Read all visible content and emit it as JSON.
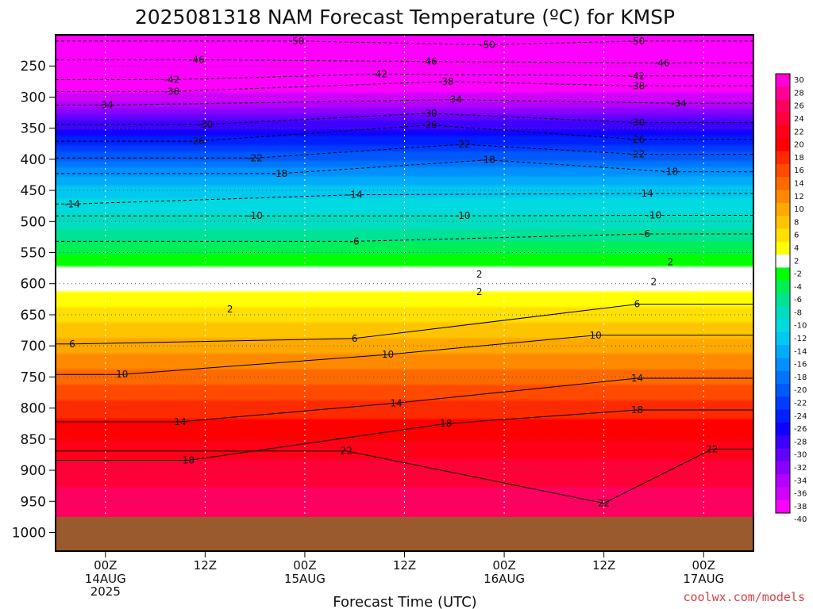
{
  "title": "2025081318 NAM Forecast Temperature (ºC) for KMSP",
  "credit": "coolwx.com/models",
  "chart_data": {
    "type": "heatmap",
    "title": "2025081318 NAM Forecast Temperature (ºC) for KMSP",
    "xlabel": "Forecast Time (UTC)",
    "ylabel": "",
    "x_ticks": [
      {
        "label": "00Z",
        "sub": [
          "14AUG",
          "2025"
        ],
        "hour": 6
      },
      {
        "label": "12Z",
        "sub": [],
        "hour": 18
      },
      {
        "label": "00Z",
        "sub": [
          "15AUG"
        ],
        "hour": 30
      },
      {
        "label": "12Z",
        "sub": [],
        "hour": 42
      },
      {
        "label": "00Z",
        "sub": [
          "16AUG"
        ],
        "hour": 54
      },
      {
        "label": "12Z",
        "sub": [],
        "hour": 66
      },
      {
        "label": "00Z",
        "sub": [
          "17AUG"
        ],
        "hour": 78
      }
    ],
    "xlim_hours": [
      0,
      84
    ],
    "pressure_levels": [
      250,
      300,
      350,
      400,
      450,
      500,
      550,
      600,
      650,
      700,
      750,
      800,
      850,
      900,
      950,
      1000
    ],
    "ylim_hPa": [
      200,
      1030
    ],
    "ground_level_hPa": 975,
    "ground_color": "#9b5a2d",
    "colorbar_labels": [
      30,
      28,
      26,
      24,
      22,
      20,
      18,
      16,
      14,
      12,
      10,
      8,
      6,
      4,
      2,
      -2,
      -4,
      -6,
      -8,
      -10,
      -12,
      -14,
      -16,
      -18,
      -20,
      -22,
      -24,
      -26,
      -28,
      -30,
      -32,
      -34,
      -36,
      -38,
      -40
    ],
    "colorbar_colors": [
      "#ff00d7",
      "#ff0096",
      "#ff0060",
      "#ff0038",
      "#ff0018",
      "#ff0000",
      "#ff2a00",
      "#ff4a00",
      "#ff6a00",
      "#ff8a00",
      "#ffa800",
      "#ffc400",
      "#ffe000",
      "#ffff00",
      "#ffffff",
      "#00ff00",
      "#00ef55",
      "#00e394",
      "#00ddc0",
      "#00dae0",
      "#00c8f0",
      "#00acfa",
      "#0090ff",
      "#0074ff",
      "#0058ff",
      "#003cff",
      "#0020ff",
      "#1000ff",
      "#3c00ff",
      "#6400ff",
      "#8c00ff",
      "#b400ff",
      "#d200ff",
      "#ff00ff"
    ],
    "temperature_profile": {
      "levels_hPa": [
        200,
        250,
        300,
        350,
        400,
        450,
        500,
        550,
        600,
        650,
        700,
        750,
        800,
        850,
        900,
        950,
        975
      ],
      "temps_C": [
        -53,
        -46,
        -37,
        -28,
        -20,
        -13,
        -9,
        -4,
        1,
        5,
        9,
        13,
        17,
        20,
        23,
        25,
        26
      ]
    },
    "contour_levels_C": [
      -50,
      -46,
      -42,
      -38,
      -34,
      -30,
      -26,
      -22,
      -18,
      -14,
      -10,
      -6,
      2,
      6,
      10,
      14,
      18,
      22
    ],
    "contour_labels": [
      {
        "label": "-50",
        "hour": 29,
        "hPa": 210
      },
      {
        "label": "-50",
        "hour": 52,
        "hPa": 216
      },
      {
        "label": "-50",
        "hour": 70,
        "hPa": 210
      },
      {
        "label": "-46",
        "hour": 17,
        "hPa": 240
      },
      {
        "label": "-46",
        "hour": 45,
        "hPa": 243
      },
      {
        "label": "-46",
        "hour": 73,
        "hPa": 245
      },
      {
        "label": "-42",
        "hour": 14,
        "hPa": 272
      },
      {
        "label": "-42",
        "hour": 39,
        "hPa": 263
      },
      {
        "label": "-42",
        "hour": 70,
        "hPa": 266
      },
      {
        "label": "-38",
        "hour": 14,
        "hPa": 291
      },
      {
        "label": "-38",
        "hour": 47,
        "hPa": 275
      },
      {
        "label": "-38",
        "hour": 70,
        "hPa": 282
      },
      {
        "label": "-34",
        "hour": 6,
        "hPa": 313
      },
      {
        "label": "-34",
        "hour": 48,
        "hPa": 304
      },
      {
        "label": "-34",
        "hour": 75,
        "hPa": 310
      },
      {
        "label": "-30",
        "hour": 18,
        "hPa": 344
      },
      {
        "label": "-30",
        "hour": 45,
        "hPa": 326
      },
      {
        "label": "-30",
        "hour": 70,
        "hPa": 341
      },
      {
        "label": "-26",
        "hour": 17,
        "hPa": 371
      },
      {
        "label": "-26",
        "hour": 45,
        "hPa": 345
      },
      {
        "label": "-26",
        "hour": 70,
        "hPa": 368
      },
      {
        "label": "-22",
        "hour": 24,
        "hPa": 398
      },
      {
        "label": "-22",
        "hour": 49,
        "hPa": 376
      },
      {
        "label": "-22",
        "hour": 70,
        "hPa": 392
      },
      {
        "label": "-18",
        "hour": 27,
        "hPa": 423
      },
      {
        "label": "-18",
        "hour": 52,
        "hPa": 401
      },
      {
        "label": "-18",
        "hour": 74,
        "hPa": 420
      },
      {
        "label": "-14",
        "hour": 2,
        "hPa": 472
      },
      {
        "label": "-14",
        "hour": 36,
        "hPa": 457
      },
      {
        "label": "-14",
        "hour": 71,
        "hPa": 455
      },
      {
        "label": "-10",
        "hour": 24,
        "hPa": 491
      },
      {
        "label": "-10",
        "hour": 49,
        "hPa": 491
      },
      {
        "label": "-10",
        "hour": 72,
        "hPa": 490
      },
      {
        "label": "-6",
        "hour": 36,
        "hPa": 532
      },
      {
        "label": "-6",
        "hour": 71,
        "hPa": 520
      },
      {
        "label": "2",
        "hour": 74,
        "hPa": 565
      },
      {
        "label": "2",
        "hour": 51,
        "hPa": 585
      },
      {
        "label": "2",
        "hour": 72,
        "hPa": 597
      },
      {
        "label": "2",
        "hour": 21,
        "hPa": 641
      },
      {
        "label": "2",
        "hour": 51,
        "hPa": 613
      },
      {
        "label": "6",
        "hour": 2,
        "hPa": 697
      },
      {
        "label": "6",
        "hour": 36,
        "hPa": 688
      },
      {
        "label": "6",
        "hour": 70,
        "hPa": 633
      },
      {
        "label": "10",
        "hour": 8,
        "hPa": 746
      },
      {
        "label": "10",
        "hour": 40,
        "hPa": 714
      },
      {
        "label": "10",
        "hour": 65,
        "hPa": 683
      },
      {
        "label": "14",
        "hour": 15,
        "hPa": 822
      },
      {
        "label": "14",
        "hour": 41,
        "hPa": 792
      },
      {
        "label": "14",
        "hour": 70,
        "hPa": 752
      },
      {
        "label": "18",
        "hour": 16,
        "hPa": 884
      },
      {
        "label": "18",
        "hour": 47,
        "hPa": 825
      },
      {
        "label": "18",
        "hour": 70,
        "hPa": 803
      },
      {
        "label": "22",
        "hour": 35,
        "hPa": 869
      },
      {
        "label": "22",
        "hour": 66,
        "hPa": 953
      },
      {
        "label": "22",
        "hour": 79,
        "hPa": 866
      }
    ],
    "grid": true,
    "legend": "colorbar-right"
  }
}
